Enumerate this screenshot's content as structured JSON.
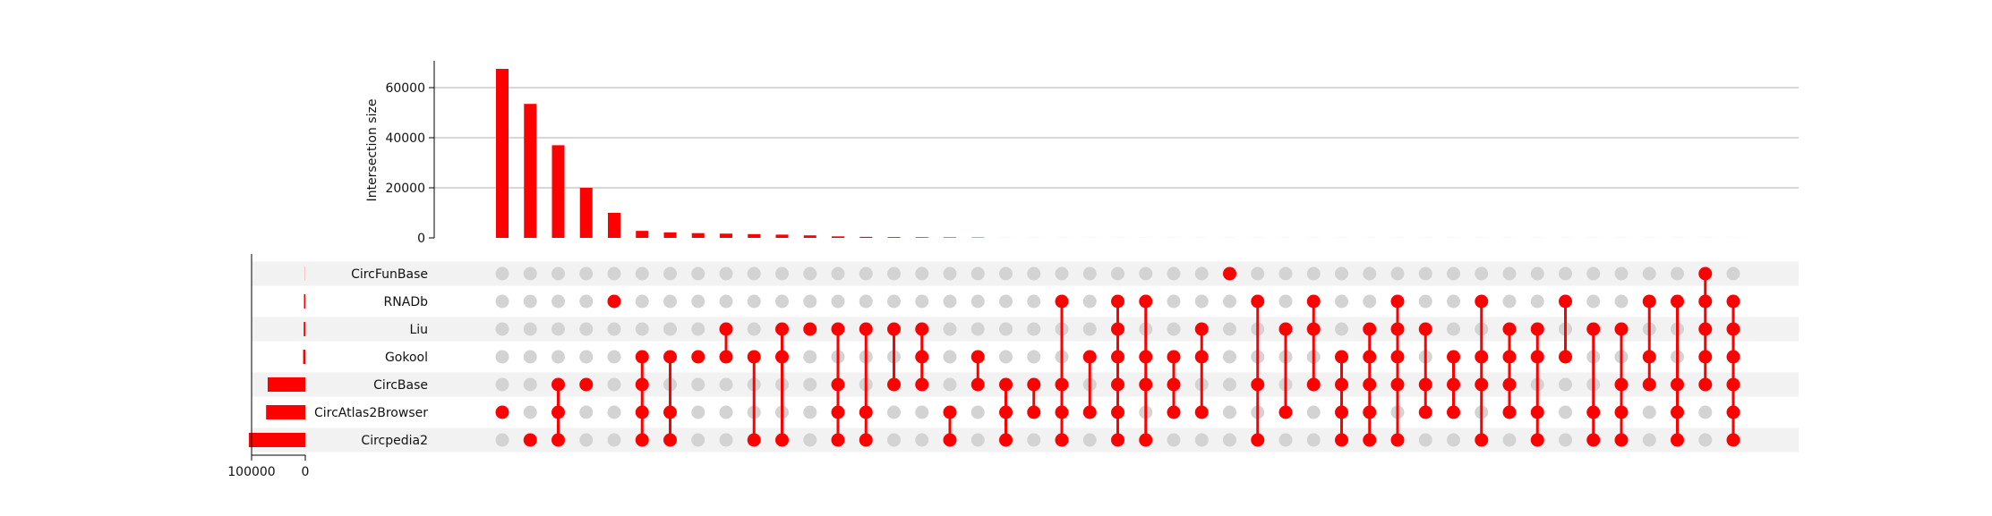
{
  "chart_data": {
    "type": "upset",
    "title": "",
    "colors": {
      "accent": "#ff0000",
      "inactive_dot": "#d3d3d3",
      "stripe": "#f2f2f2",
      "grid": "#bfbfbf",
      "axis": "#000000"
    },
    "intersection_axis": {
      "ylabel": "Intersection size",
      "ylim": [
        0,
        70000
      ],
      "ticks": [
        0,
        20000,
        40000,
        60000
      ],
      "tick_labels": [
        "0",
        "20000",
        "40000",
        "60000"
      ],
      "grid": true
    },
    "set_size_axis": {
      "direction": "reversed",
      "xlim": [
        0,
        100000
      ],
      "ticks": [
        100000,
        0
      ],
      "tick_labels": [
        "100000",
        "0"
      ]
    },
    "sets": [
      {
        "name": "CircFunBase",
        "size": 300
      },
      {
        "name": "RNADb",
        "size": 2500
      },
      {
        "name": "Liu",
        "size": 3000
      },
      {
        "name": "Gokool",
        "size": 4000
      },
      {
        "name": "CircBase",
        "size": 70000
      },
      {
        "name": "CircAtlas2Browser",
        "size": 73000
      },
      {
        "name": "Circpedia2",
        "size": 105000
      }
    ],
    "intersections": [
      {
        "size": 67500,
        "members": [
          "CircAtlas2Browser"
        ]
      },
      {
        "size": 53500,
        "members": [
          "Circpedia2"
        ]
      },
      {
        "size": 37000,
        "members": [
          "CircBase",
          "CircAtlas2Browser",
          "Circpedia2"
        ]
      },
      {
        "size": 20000,
        "members": [
          "CircBase"
        ]
      },
      {
        "size": 10000,
        "members": [
          "RNADb"
        ]
      },
      {
        "size": 2800,
        "members": [
          "Gokool",
          "CircBase",
          "CircAtlas2Browser",
          "Circpedia2"
        ]
      },
      {
        "size": 2200,
        "members": [
          "Gokool",
          "CircAtlas2Browser",
          "Circpedia2"
        ]
      },
      {
        "size": 1900,
        "members": [
          "Gokool"
        ]
      },
      {
        "size": 1700,
        "members": [
          "Liu",
          "Gokool"
        ]
      },
      {
        "size": 1500,
        "members": [
          "Gokool",
          "Circpedia2"
        ]
      },
      {
        "size": 1300,
        "members": [
          "Liu",
          "Gokool",
          "Circpedia2"
        ]
      },
      {
        "size": 1000,
        "members": [
          "Liu"
        ]
      },
      {
        "size": 600,
        "members": [
          "Liu",
          "CircBase",
          "CircAtlas2Browser",
          "Circpedia2"
        ]
      },
      {
        "size": 400,
        "members": [
          "Liu",
          "CircAtlas2Browser",
          "Circpedia2"
        ]
      },
      {
        "size": 300,
        "members": [
          "Liu",
          "CircBase"
        ]
      },
      {
        "size": 250,
        "members": [
          "Liu",
          "Gokool",
          "CircBase"
        ]
      },
      {
        "size": 200,
        "members": [
          "CircAtlas2Browser",
          "Circpedia2"
        ]
      },
      {
        "size": 150,
        "members": [
          "Gokool",
          "CircBase"
        ]
      },
      {
        "size": 10,
        "members": [
          "CircBase",
          "CircAtlas2Browser",
          "Circpedia2"
        ]
      },
      {
        "size": 10,
        "members": [
          "CircBase",
          "CircAtlas2Browser"
        ]
      },
      {
        "size": 10,
        "members": [
          "RNADb",
          "CircBase",
          "CircAtlas2Browser",
          "Circpedia2"
        ]
      },
      {
        "size": 10,
        "members": [
          "Gokool",
          "CircAtlas2Browser"
        ]
      },
      {
        "size": 10,
        "members": [
          "RNADb",
          "Liu",
          "Gokool",
          "CircBase",
          "CircAtlas2Browser",
          "Circpedia2"
        ]
      },
      {
        "size": 10,
        "members": [
          "RNADb",
          "Gokool",
          "CircBase",
          "Circpedia2"
        ]
      },
      {
        "size": 10,
        "members": [
          "Gokool",
          "CircBase",
          "CircAtlas2Browser"
        ]
      },
      {
        "size": 10,
        "members": [
          "Liu",
          "Gokool",
          "CircAtlas2Browser"
        ]
      },
      {
        "size": 10,
        "members": [
          "CircFunBase"
        ]
      },
      {
        "size": 10,
        "members": [
          "RNADb",
          "CircBase",
          "Circpedia2"
        ]
      },
      {
        "size": 10,
        "members": [
          "Liu",
          "CircAtlas2Browser"
        ]
      },
      {
        "size": 10,
        "members": [
          "RNADb",
          "Liu",
          "CircBase"
        ]
      },
      {
        "size": 10,
        "members": [
          "Gokool",
          "CircBase",
          "CircAtlas2Browser",
          "Circpedia2"
        ]
      },
      {
        "size": 10,
        "members": [
          "Liu",
          "Gokool",
          "CircBase",
          "CircAtlas2Browser",
          "Circpedia2"
        ]
      },
      {
        "size": 10,
        "members": [
          "RNADb",
          "Liu",
          "Gokool",
          "CircBase",
          "Circpedia2"
        ]
      },
      {
        "size": 10,
        "members": [
          "Liu",
          "CircBase",
          "CircAtlas2Browser"
        ]
      },
      {
        "size": 10,
        "members": [
          "Gokool",
          "CircBase",
          "CircAtlas2Browser"
        ]
      },
      {
        "size": 10,
        "members": [
          "RNADb",
          "Gokool",
          "CircBase",
          "Circpedia2"
        ]
      },
      {
        "size": 10,
        "members": [
          "Liu",
          "Gokool",
          "CircBase",
          "CircAtlas2Browser"
        ]
      },
      {
        "size": 10,
        "members": [
          "Liu",
          "Gokool",
          "CircAtlas2Browser",
          "Circpedia2"
        ]
      },
      {
        "size": 10,
        "members": [
          "RNADb",
          "Gokool"
        ]
      },
      {
        "size": 10,
        "members": [
          "Liu",
          "CircAtlas2Browser",
          "Circpedia2"
        ]
      },
      {
        "size": 10,
        "members": [
          "Liu",
          "CircBase",
          "CircAtlas2Browser",
          "Circpedia2"
        ]
      },
      {
        "size": 10,
        "members": [
          "RNADb",
          "Gokool",
          "CircBase"
        ]
      },
      {
        "size": 10,
        "members": [
          "RNADb",
          "CircBase",
          "CircAtlas2Browser",
          "Circpedia2"
        ]
      },
      {
        "size": 10,
        "members": [
          "CircFunBase",
          "RNADb",
          "Liu",
          "Gokool",
          "CircBase"
        ]
      },
      {
        "size": 10,
        "members": [
          "RNADb",
          "Liu",
          "Gokool",
          "CircBase",
          "CircAtlas2Browser",
          "Circpedia2"
        ]
      }
    ]
  }
}
